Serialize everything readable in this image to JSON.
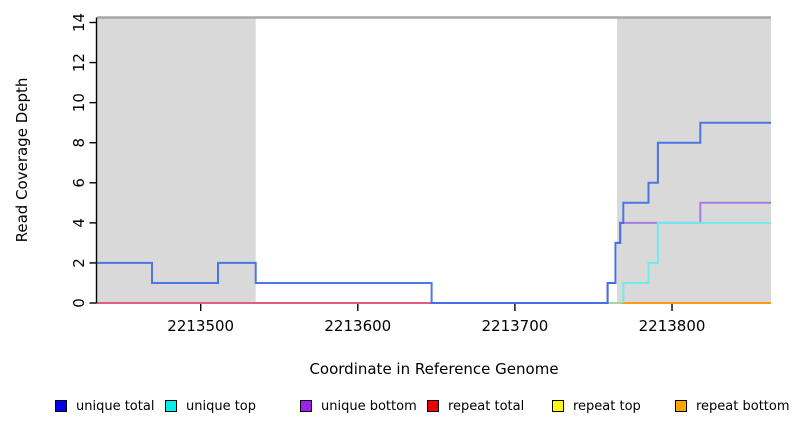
{
  "figure": {
    "xlabel": "Coordinate in Reference Genome",
    "ylabel": "Read Coverage Depth"
  },
  "chart_data": {
    "type": "line",
    "subtype": "step-coverage",
    "title": "",
    "xlabel": "Coordinate in Reference Genome",
    "ylabel": "Read Coverage Depth",
    "xlim": [
      2213434,
      2213863
    ],
    "ylim": [
      0,
      14
    ],
    "x_ticks": [
      2213500,
      2213600,
      2213700,
      2213800
    ],
    "y_ticks": [
      0,
      2,
      4,
      6,
      8,
      10,
      12,
      14
    ],
    "grid": false,
    "legend_position": "bottom",
    "background_color": "#ffffff",
    "shaded_regions": [
      {
        "x0": 2213434,
        "x1": 2213535,
        "color": "#d9d9d9"
      },
      {
        "x0": 2213765,
        "x1": 2213863,
        "color": "#d9d9d9"
      }
    ],
    "top_boundary_line": {
      "color": "#a8a8a8",
      "x0": 2213434,
      "x1": 2213863
    },
    "series": [
      {
        "id": "repeat_total",
        "name": "repeat total",
        "line_color": "#dd5f7d",
        "legend_color": "#ee0000",
        "opacity": 1,
        "step_points": [
          [
            2213434,
            0
          ],
          [
            2213863,
            0
          ]
        ]
      },
      {
        "id": "repeat_top",
        "name": "repeat top",
        "line_color": "#aad6a0",
        "legend_color": "#ffff00",
        "opacity": 1,
        "step_points": [
          [
            2213759,
            0
          ],
          [
            2213768,
            0
          ]
        ]
      },
      {
        "id": "repeat_bottom",
        "name": "repeat bottom",
        "line_color": "#ff9a1c",
        "legend_color": "#ffa500",
        "opacity": 1,
        "step_points": [
          [
            2213768,
            0
          ],
          [
            2213863,
            0
          ]
        ]
      },
      {
        "id": "unique_bottom",
        "name": "unique bottom",
        "line_color": "#a97ae2",
        "legend_color": "#a020f0",
        "opacity": 1,
        "step_points": [
          [
            2213647,
            0
          ],
          [
            2213759,
            1
          ],
          [
            2213764,
            3
          ],
          [
            2213767,
            4
          ],
          [
            2213818,
            5
          ],
          [
            2213863,
            5
          ]
        ]
      },
      {
        "id": "unique_top",
        "name": "unique top",
        "line_color": "#6feaed",
        "legend_color": "#00eeee",
        "opacity": 1,
        "step_points": [
          [
            2213769,
            0
          ],
          [
            2213769,
            1
          ],
          [
            2213785,
            2
          ],
          [
            2213791,
            4
          ],
          [
            2213863,
            4
          ]
        ]
      },
      {
        "id": "unique_total",
        "name": "unique total",
        "line_color": "#3f6ce6",
        "legend_color": "#0000ee",
        "opacity": 0.92,
        "step_points": [
          [
            2213434,
            2
          ],
          [
            2213469,
            1
          ],
          [
            2213511,
            2
          ],
          [
            2213535,
            1
          ],
          [
            2213647,
            0
          ],
          [
            2213759,
            1
          ],
          [
            2213764,
            3
          ],
          [
            2213767,
            4
          ],
          [
            2213769,
            5
          ],
          [
            2213785,
            6
          ],
          [
            2213791,
            8
          ],
          [
            2213818,
            9
          ],
          [
            2213863,
            9
          ]
        ]
      }
    ],
    "legend": [
      {
        "label": "unique total",
        "color": "#0000ee"
      },
      {
        "label": "unique top",
        "color": "#00eeee"
      },
      {
        "label": "unique bottom",
        "color": "#a020f0"
      },
      {
        "label": "repeat total",
        "color": "#ee0000"
      },
      {
        "label": "repeat top",
        "color": "#ffff00"
      },
      {
        "label": "repeat bottom",
        "color": "#ffa500"
      }
    ]
  }
}
